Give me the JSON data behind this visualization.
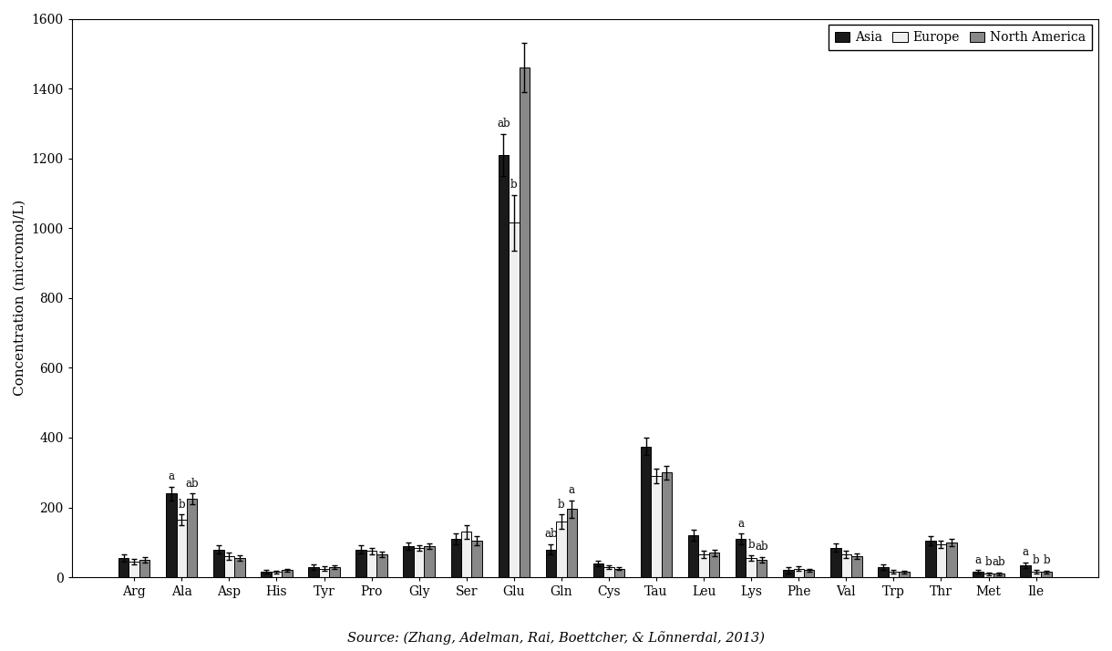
{
  "categories": [
    "Arg",
    "Ala",
    "Asp",
    "His",
    "Tyr",
    "Pro",
    "Gly",
    "Ser",
    "Glu",
    "Gln",
    "Cys",
    "Tau",
    "Leu",
    "Lys",
    "Phe",
    "Val",
    "Trp",
    "Thr",
    "Met",
    "Ile"
  ],
  "asia": [
    55,
    240,
    80,
    15,
    30,
    80,
    90,
    110,
    1210,
    80,
    40,
    375,
    120,
    110,
    20,
    85,
    30,
    105,
    15,
    35
  ],
  "europe": [
    45,
    165,
    60,
    15,
    25,
    75,
    85,
    130,
    1015,
    160,
    30,
    290,
    65,
    55,
    25,
    65,
    15,
    95,
    10,
    15
  ],
  "north_america": [
    50,
    225,
    55,
    20,
    30,
    65,
    90,
    105,
    1460,
    195,
    25,
    300,
    70,
    50,
    20,
    60,
    15,
    100,
    10,
    15
  ],
  "asia_err": [
    10,
    20,
    12,
    5,
    8,
    12,
    10,
    15,
    60,
    15,
    8,
    25,
    15,
    15,
    8,
    12,
    8,
    12,
    5,
    8
  ],
  "europe_err": [
    8,
    15,
    10,
    4,
    6,
    10,
    8,
    20,
    80,
    20,
    5,
    20,
    10,
    8,
    6,
    10,
    5,
    10,
    4,
    5
  ],
  "north_america_err": [
    8,
    15,
    8,
    4,
    5,
    8,
    8,
    12,
    70,
    25,
    5,
    20,
    10,
    8,
    5,
    8,
    4,
    10,
    4,
    4
  ],
  "asia_labels": [
    "",
    "a",
    "",
    "",
    "",
    "",
    "",
    "",
    "ab",
    "ab",
    "",
    "",
    "",
    "a",
    "",
    "",
    "",
    "",
    "a",
    "a"
  ],
  "europe_labels": [
    "",
    "b",
    "",
    "",
    "",
    "",
    "",
    "",
    "b",
    "b",
    "",
    "",
    "",
    "b",
    "",
    "",
    "",
    "",
    "b",
    "b"
  ],
  "north_america_labels": [
    "",
    "ab",
    "",
    "",
    "",
    "",
    "",
    "",
    "",
    "a",
    "",
    "",
    "",
    "ab",
    "",
    "",
    "",
    "",
    "ab",
    "b"
  ],
  "ylim": [
    0,
    1600
  ],
  "yticks": [
    0,
    200,
    400,
    600,
    800,
    1000,
    1200,
    1400,
    1600
  ],
  "ylabel": "Concentration (micromol/L)",
  "bar_colors": [
    "#1a1a1a",
    "#f0f0f0",
    "#888888"
  ],
  "bar_edgecolors": [
    "#000000",
    "#000000",
    "#000000"
  ],
  "legend_labels": [
    "Asia",
    "Europe",
    "North America"
  ],
  "source_text": "Source: (Zhang, Adelman, Rai, Boettcher, & Lõnnerdal, 2013)"
}
